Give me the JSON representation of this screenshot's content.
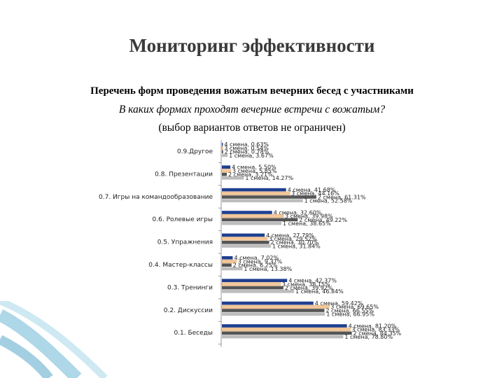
{
  "slide": {
    "title": "Мониторинг эффективности",
    "subtitle": "Перечень форм проведения вожатым вечерних бесед с участниками",
    "question": "В каких формах проходят вечерние встречи с вожатым?",
    "note": "(выбор вариантов ответов не ограничен)"
  },
  "colors": {
    "shift4": "#1f3f8f",
    "shift3": "#f2c79a",
    "shift2": "#555555",
    "shift1": "#bdbdbd",
    "gridline": "#9a9a9a",
    "decoration": "#6bb6d6"
  },
  "chart_data": {
    "type": "bar",
    "orientation": "horizontal",
    "categories": [
      "0.9.Другое",
      "0.8. Презентации",
      "0.7. Игры на командообразование",
      "0.6. Ролевые игры",
      "0.5. Упражнения",
      "0.4. Мастер-классы",
      "0.3. Тренинги",
      "0.2. Дискуссии",
      "0.1. Беседы"
    ],
    "series": [
      {
        "name": "4 смена",
        "color": "#1f3f8f",
        "values": [
          0.63,
          5.5,
          41.68,
          32.6,
          27.79,
          7.02,
          42.37,
          59.42,
          81.2
        ]
      },
      {
        "name": "3 смена",
        "color": "#f2c79a",
        "values": [
          0.54,
          5.85,
          44.16,
          39.98,
          29.52,
          9.37,
          38.15,
          69.65,
          83.33
        ]
      },
      {
        "name": "2 смена",
        "color": "#555555",
        "values": [
          0.78,
          3.21,
          61.31,
          49.22,
          30.7,
          6.25,
          39.92,
          66.55,
          84.35
        ]
      },
      {
        "name": "1 смена",
        "color": "#bdbdbd",
        "values": [
          3.67,
          14.27,
          52.58,
          38.65,
          31.84,
          13.38,
          46.84,
          66.95,
          78.8
        ]
      }
    ],
    "labels": [
      [
        "4 смена, 0.63%",
        "3 смена, 0.54%",
        "2 смена, 0.78%",
        "1 смена, 3.67%"
      ],
      [
        "4 смена, 5.50%",
        "3 смена, 5.85%",
        "2 смена, 3.21%",
        "1 смена, 14.27%"
      ],
      [
        "4 смена, 41.68%",
        "3 смена, 44.16%",
        "2 смена, 61.31%",
        "1 смена, 52.58%"
      ],
      [
        "4 смена, 32.60%",
        "3 смена, 39.98%",
        "2 смена, 49.22%",
        "1 смена, 38.65%"
      ],
      [
        "4 смена, 27.79%",
        "3 смена, 29.52%",
        "2 смена, 30.70%",
        "1 смена, 31.84%"
      ],
      [
        "4 смена, 7.02%",
        "3 смена, 9.37%",
        "2 смена, 6.25%",
        "1 смена, 13.38%"
      ],
      [
        "4 смена, 42.37%",
        "3 смена, 38.15%",
        "2 смена, 39.92%",
        "1 смена, 46.84%"
      ],
      [
        "4 смена, 59.42%",
        "3 смена, 69.65%",
        "2 смена, 66.55%",
        "1 смена, 66.95%"
      ],
      [
        "4 смена, 81.20%",
        "3 смена, 83.33%",
        "2 смена, 84.35%",
        "1 смена, 78.80%"
      ]
    ],
    "xlim": [
      0,
      100
    ],
    "grid": false,
    "legend": "none"
  }
}
